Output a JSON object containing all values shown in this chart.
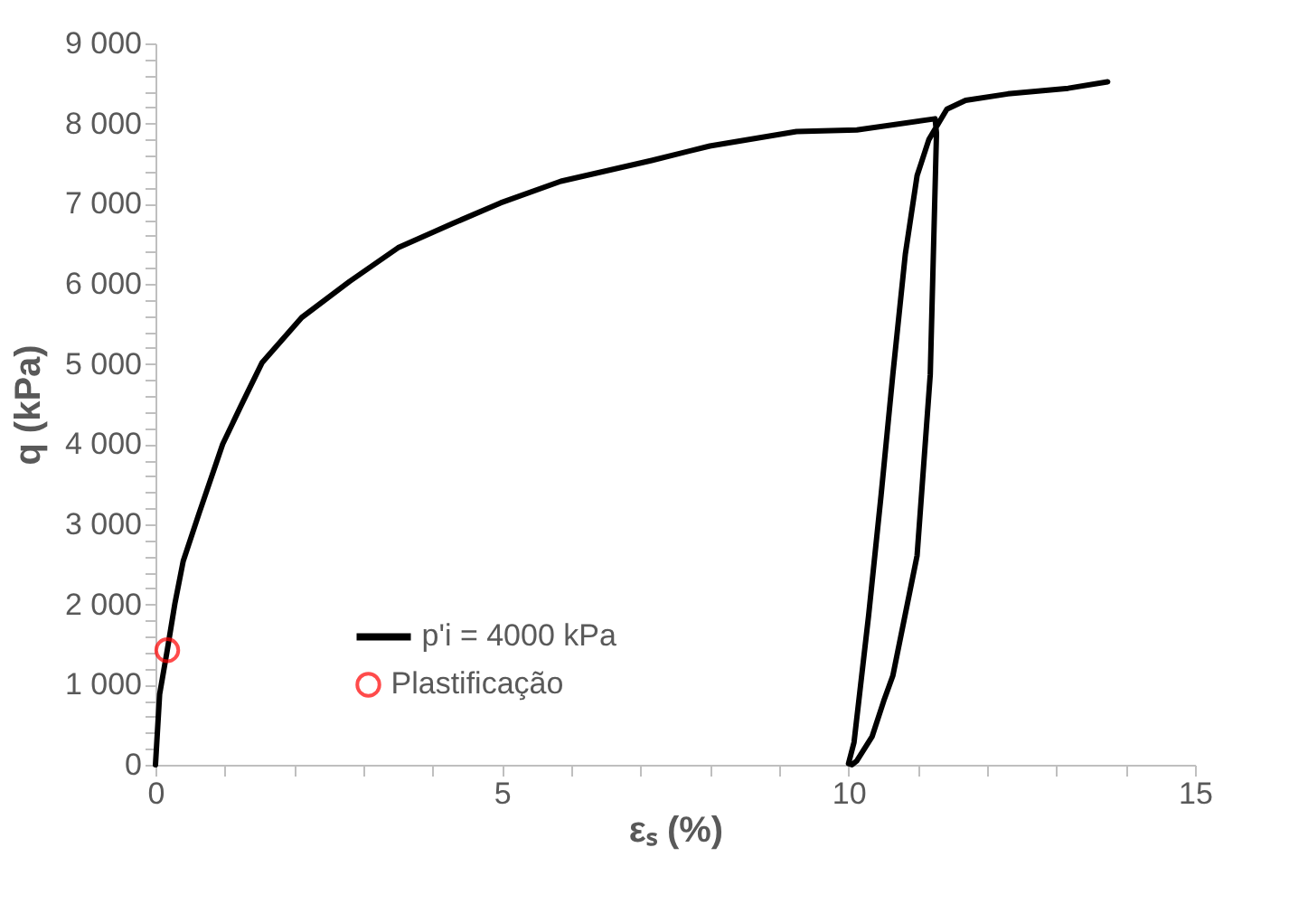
{
  "chart_data": {
    "type": "line",
    "xlabel": "εₛ (%)",
    "ylabel": "q (kPa)",
    "xlim": [
      0,
      15
    ],
    "ylim": [
      0,
      9000
    ],
    "xticks": [
      0,
      {
        "value": 1,
        "label": null
      },
      {
        "value": 2,
        "label": null
      },
      {
        "value": 3,
        "label": null
      },
      {
        "value": 4,
        "label": null
      },
      5,
      {
        "value": 6,
        "label": null
      },
      {
        "value": 7,
        "label": null
      },
      {
        "value": 8,
        "label": null
      },
      {
        "value": 9,
        "label": null
      },
      10,
      {
        "value": 11,
        "label": null
      },
      {
        "value": 12,
        "label": null
      },
      {
        "value": 13,
        "label": null
      },
      {
        "value": 14,
        "label": null
      },
      15
    ],
    "yticks": [
      0,
      {
        "value": 200,
        "label": null
      },
      {
        "value": 400,
        "label": null
      },
      {
        "value": 600,
        "label": null
      },
      {
        "value": 800,
        "label": null
      },
      {
        "value": 1000,
        "label": "1 000"
      },
      {
        "value": 1200,
        "label": null
      },
      {
        "value": 1400,
        "label": null
      },
      {
        "value": 1600,
        "label": null
      },
      {
        "value": 1800,
        "label": null
      },
      {
        "value": 2000,
        "label": "2 000"
      },
      {
        "value": 2200,
        "label": null
      },
      {
        "value": 2400,
        "label": null
      },
      {
        "value": 2600,
        "label": null
      },
      {
        "value": 2800,
        "label": null
      },
      {
        "value": 3000,
        "label": "3 000"
      },
      {
        "value": 3200,
        "label": null
      },
      {
        "value": 3400,
        "label": null
      },
      {
        "value": 3600,
        "label": null
      },
      {
        "value": 3800,
        "label": null
      },
      {
        "value": 4000,
        "label": "4 000"
      },
      {
        "value": 4200,
        "label": null
      },
      {
        "value": 4400,
        "label": null
      },
      {
        "value": 4600,
        "label": null
      },
      {
        "value": 4800,
        "label": null
      },
      {
        "value": 5000,
        "label": "5 000"
      },
      {
        "value": 5200,
        "label": null
      },
      {
        "value": 5400,
        "label": null
      },
      {
        "value": 5600,
        "label": null
      },
      {
        "value": 5800,
        "label": null
      },
      {
        "value": 6000,
        "label": "6 000"
      },
      {
        "value": 6200,
        "label": null
      },
      {
        "value": 6400,
        "label": null
      },
      {
        "value": 6600,
        "label": null
      },
      {
        "value": 6800,
        "label": null
      },
      {
        "value": 7000,
        "label": "7 000"
      },
      {
        "value": 7200,
        "label": null
      },
      {
        "value": 7400,
        "label": null
      },
      {
        "value": 7600,
        "label": null
      },
      {
        "value": 7800,
        "label": null
      },
      {
        "value": 8000,
        "label": "8 000"
      },
      {
        "value": 8200,
        "label": null
      },
      {
        "value": 8400,
        "label": null
      },
      {
        "value": 8600,
        "label": null
      },
      {
        "value": 8800,
        "label": null
      },
      {
        "value": 9000,
        "label": "9 000"
      }
    ],
    "grid": false,
    "legend": "bottom",
    "series": [
      {
        "name": "p'i = 4000 kPa",
        "color": "#000000",
        "marker": "none",
        "line_style": "solid",
        "x": [
          0,
          0.06,
          0.17,
          0.28,
          0.4,
          0.63,
          0.97,
          1.24,
          1.54,
          2.11,
          2.8,
          3.5,
          4.28,
          4.98,
          5.85,
          7.16,
          8.0,
          9.25,
          10.12,
          11.25,
          11.27,
          11.18,
          10.99,
          10.64,
          10.51,
          10.34,
          10.12,
          10.05,
          10.0,
          10.08,
          10.29,
          10.47,
          10.64,
          10.82,
          10.99,
          11.16,
          11.29,
          11.42,
          11.69,
          12.3,
          13.17,
          13.74
        ],
        "values": [
          0,
          880,
          1430,
          2010,
          2540,
          3140,
          4000,
          4490,
          5020,
          5580,
          6030,
          6450,
          6750,
          7010,
          7280,
          7540,
          7720,
          7900,
          7920,
          8060,
          7880,
          4870,
          2610,
          1110,
          800,
          350,
          50,
          0,
          15,
          280,
          1860,
          3360,
          4870,
          6370,
          7350,
          7800,
          7990,
          8180,
          8290,
          8370,
          8440,
          8520
        ]
      },
      {
        "name": "Plastificação",
        "type": "scatter",
        "color": "#ff0000",
        "marker": "circle",
        "x": [
          0.17
        ],
        "values": [
          1430
        ]
      }
    ]
  }
}
